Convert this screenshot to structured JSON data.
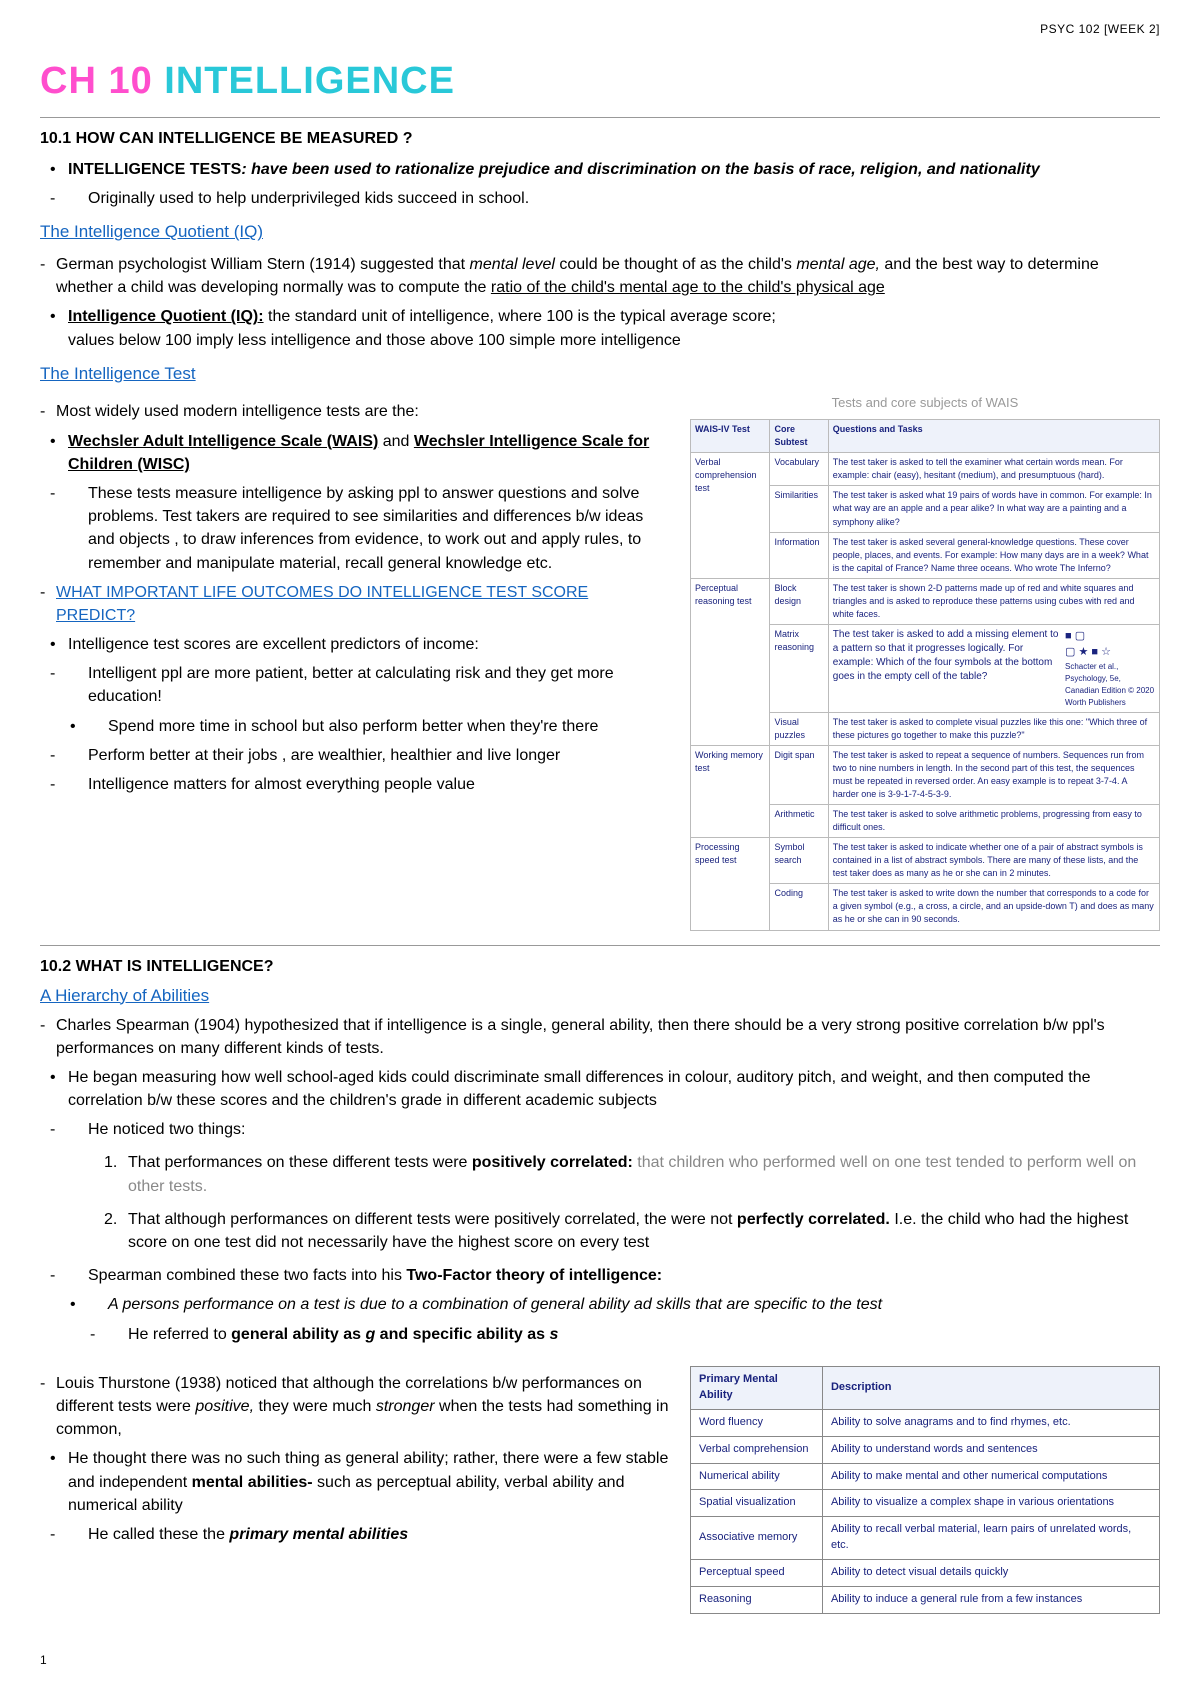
{
  "meta": {
    "header": "PSYC 102 [WEEK 2]",
    "pageNum": "1"
  },
  "title": {
    "pink": "CH 10 ",
    "cyan": "INTELLIGENCE"
  },
  "s101": {
    "head": "10.1 HOW CAN INTELLIGENCE BE MEASURED ?",
    "p1a": "INTELLIGENCE TESTS",
    "p1b": ": have been used to rationalize prejudice and discrimination on the basis of race, religion, and nationality",
    "p2": "Originally used to help underprivileged kids succeed in school."
  },
  "iq": {
    "link": "The Intelligence Quotient (IQ)",
    "p1a": "German psychologist William Stern (1914) suggested that ",
    "p1b": "mental level",
    "p1c": " could be thought of as the child's ",
    "p1d": "mental age,",
    "p1e": " and the best way to determine whether a child was developing normally was to compute the ",
    "p1f": "ratio of the child's mental age to the child's physical age",
    "p2a": "Intelligence Quotient (IQ):",
    "p2b": " the standard unit of intelligence, where 100 is the typical average score;",
    "p2c": "values below 100 imply less intelligence and those above 100 simple more intelligence"
  },
  "itest": {
    "link": "The Intelligence Test",
    "caption": "Tests and core subjects of WAIS",
    "p1": "Most widely used modern intelligence tests are the:",
    "p2a": "Wechsler Adult Intelligence Scale (WAIS)",
    "p2b": " and ",
    "p2c": "Wechsler Intelligence Scale for Children (WISC)",
    "p3": "These tests measure intelligence by asking ppl to answer questions and solve problems. Test takers are required to see similarities and differences b/w ideas and objects , to draw inferences from evidence, to work out and apply rules, to remember and manipulate material, recall general knowledge etc.",
    "predlink": "WHAT IMPORTANT LIFE OUTCOMES DO INTELLIGENCE TEST SCORE PREDICT?",
    "pred1": "Intelligence test scores are excellent predictors of income:",
    "pred2": "Intelligent ppl are more patient, better at calculating risk and they get more education!",
    "pred3": "Spend more time in school but also perform better when they're there",
    "pred4": "Perform better at their jobs , are wealthier, healthier and live longer",
    "pred5": "Intelligence matters for almost everything people value"
  },
  "wais": {
    "headers": [
      "WAIS-IV Test",
      "Core Subtest",
      "Questions and Tasks"
    ],
    "rows": [
      {
        "test": "Verbal comprehension test",
        "subtests": [
          {
            "s": "Vocabulary",
            "q": "The test taker is asked to tell the examiner what certain words mean. For example: chair (easy), hesitant (medium), and presumptuous (hard)."
          },
          {
            "s": "Similarities",
            "q": "The test taker is asked what 19 pairs of words have in common. For example: In what way are an apple and a pear alike? In what way are a painting and a symphony alike?"
          },
          {
            "s": "Information",
            "q": "The test taker is asked several general-knowledge questions. These cover people, places, and events. For example: How many days are in a week? What is the capital of France? Name three oceans. Who wrote The Inferno?"
          }
        ]
      },
      {
        "test": "Perceptual reasoning test",
        "subtests": [
          {
            "s": "Block design",
            "q": "The test taker is shown 2-D patterns made up of red and white squares and triangles and is asked to reproduce these patterns using cubes with red and white faces."
          },
          {
            "s": "Matrix reasoning",
            "q": "MATRIX"
          },
          {
            "s": "Visual puzzles",
            "q": "The test taker is asked to complete visual puzzles like this one: \"Which three of these pictures go together to make this puzzle?\""
          }
        ]
      },
      {
        "test": "Working memory test",
        "subtests": [
          {
            "s": "Digit span",
            "q": "The test taker is asked to repeat a sequence of numbers. Sequences run from two to nine numbers in length. In the second part of this test, the sequences must be repeated in reversed order. An easy example is to repeat 3-7-4. A harder one is 3-9-1-7-4-5-3-9."
          },
          {
            "s": "Arithmetic",
            "q": "The test taker is asked to solve arithmetic problems, progressing from easy to difficult ones."
          }
        ]
      },
      {
        "test": "Processing speed test",
        "subtests": [
          {
            "s": "Symbol search",
            "q": "The test taker is asked to indicate whether one of a pair of abstract symbols is contained in a list of abstract symbols. There are many of these lists, and the test taker does as many as he or she can in 2 minutes."
          },
          {
            "s": "Coding",
            "q": "The test taker is asked to write down the number that corresponds to a code for a given symbol (e.g., a cross, a circle, and an upside-down T) and does as many as he or she can in 90 seconds."
          }
        ]
      }
    ],
    "matrixText": "The test taker is asked to add a missing element to a pattern so that it progresses logically. For example: Which of the four symbols at the bottom goes in the empty cell of the table?",
    "matrixCite": "Schacter et al., Psychology, 5e, Canadian Edition © 2020 Worth Publishers",
    "shapes1": "■ ▢",
    "shapes2": "▢ ★ ■ ☆"
  },
  "s102": {
    "head": "10.2 WHAT IS INTELLIGENCE?",
    "link": "A Hierarchy of Abilities",
    "p1": "Charles Spearman (1904) hypothesized that if intelligence is a single, general ability, then there should be a very strong positive correlation b/w ppl's performances on many different kinds of tests.",
    "p2": "He began measuring how well school-aged kids could discriminate small differences in colour, auditory pitch, and weight, and then computed the correlation b/w these scores and the children's grade in different  academic subjects",
    "p3": "He noticed two things:",
    "o1a": "That performances on these different tests were ",
    "o1b": "positively correlated:",
    "o1c": " that children who performed well on one test tended to perform well on other tests.",
    "o2a": "That although performances on different tests were positively correlated, the were not ",
    "o2b": "perfectly correlated.",
    "o2c": " I.e. the child who had the highest score on one test did not necessarily have the highest score on every test",
    "p4a": "Spearman combined these two facts into his ",
    "p4b": "Two-Factor theory of intelligence:",
    "p5": "A persons performance on a test is due to a combination of general ability ad skills that are specific to the test",
    "p6a": "He referred to ",
    "p6b": "general ability as ",
    "p6c": "g",
    "p6d": " and ",
    "p6e": "specific ability as ",
    "p6f": "s",
    "p7a": "Louis Thurstone (1938) noticed that although the correlations b/w performances on different tests were ",
    "p7b": "positive,",
    "p7c": " they were much ",
    "p7d": "stronger",
    "p7e": " when the tests had something in common,",
    "p8a": "He thought there was no such thing as general ability; rather, there were a few stable and independent ",
    "p8b": "mental abilities-",
    "p8c": " such as perceptual ability, verbal ability and numerical ability",
    "p9a": "He called these the ",
    "p9b": "primary mental abilities"
  },
  "pma": {
    "headers": [
      "Primary Mental Ability",
      "Description"
    ],
    "rows": [
      [
        "Word fluency",
        "Ability to solve anagrams and to find rhymes, etc."
      ],
      [
        "Verbal comprehension",
        "Ability to understand words and sentences"
      ],
      [
        "Numerical ability",
        "Ability to make mental and other numerical computations"
      ],
      [
        "Spatial visualization",
        "Ability to visualize a complex shape in various orientations"
      ],
      [
        "Associative memory",
        "Ability to recall verbal material, learn pairs of unrelated words, etc."
      ],
      [
        "Perceptual speed",
        "Ability to detect visual details quickly"
      ],
      [
        "Reasoning",
        "Ability to induce a general rule from a few instances"
      ]
    ]
  }
}
